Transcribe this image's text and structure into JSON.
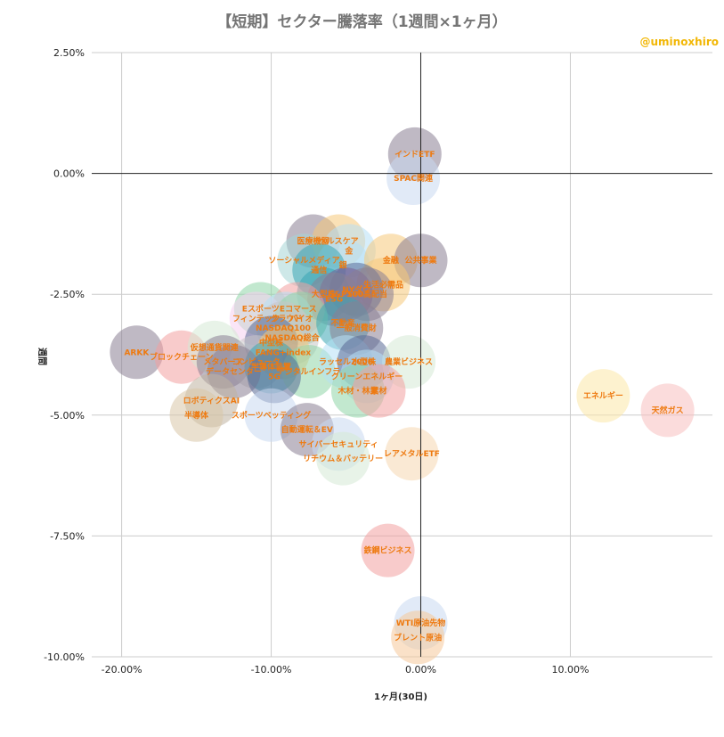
{
  "chart_data": {
    "type": "scatter",
    "title": "【短期】セクター騰落率（1週間×1ヶ月）",
    "watermark": "@uminoxhiro",
    "xlabel": "1ヶ月(30日)",
    "ylabel": "週間",
    "xlim": [
      -22,
      19.5
    ],
    "ylim": [
      -10,
      2.5
    ],
    "x_ticks": [
      "-20.00%",
      "-10.00%",
      "0.00%",
      "10.00%"
    ],
    "x_tick_values": [
      -20,
      -10,
      0,
      10
    ],
    "y_ticks": [
      "2.50%",
      "0.00%",
      "-2.50%",
      "-5.00%",
      "-7.50%",
      "-10.00%"
    ],
    "y_tick_values": [
      2.5,
      0,
      -2.5,
      -5,
      -7.5,
      -10
    ],
    "grid": true,
    "label_color": "#ee7a10",
    "watermark_color": "#f2b705",
    "points": [
      {
        "label": "インドETF",
        "x": -0.4,
        "y": 0.4,
        "color": "#8a8094"
      },
      {
        "label": "SPAC関連",
        "x": -0.5,
        "y": -0.1,
        "color": "#c9d8f0"
      },
      {
        "label": "医療機器",
        "x": -7.2,
        "y": -1.4,
        "color": "#8a8094"
      },
      {
        "label": "ヘルスケア",
        "x": -5.5,
        "y": -1.4,
        "color": "#f5c97a"
      },
      {
        "label": "金",
        "x": -4.8,
        "y": -1.6,
        "color": "#b7e0f5"
      },
      {
        "label": "ソーシャルメディア",
        "x": -7.8,
        "y": -1.8,
        "color": "#a6d6d6"
      },
      {
        "label": "銀",
        "x": -5.2,
        "y": -1.9,
        "color": "#b7e0f5"
      },
      {
        "label": "金融",
        "x": -2.0,
        "y": -1.8,
        "color": "#f5c97a"
      },
      {
        "label": "公共事業",
        "x": 0.0,
        "y": -1.8,
        "color": "#8a8094"
      },
      {
        "label": "通信",
        "x": -6.8,
        "y": -2.0,
        "color": "#3aa6b5"
      },
      {
        "label": "生活必需品",
        "x": -2.5,
        "y": -2.3,
        "color": "#f5c97a"
      },
      {
        "label": "NYダウ",
        "x": -4.3,
        "y": -2.4,
        "color": "#5a6a96"
      },
      {
        "label": "大型株",
        "x": -6.5,
        "y": -2.5,
        "color": "#3aa6b5"
      },
      {
        "label": "S&P500",
        "x": -5.0,
        "y": -2.5,
        "color": "#7a5f96"
      },
      {
        "label": "100高配当",
        "x": -3.6,
        "y": -2.5,
        "color": "#8a8094"
      },
      {
        "label": "ESG",
        "x": -5.8,
        "y": -2.6,
        "color": "#8a8094"
      },
      {
        "label": "Eスポーツ",
        "x": -10.7,
        "y": -2.8,
        "color": "#8fd6a8"
      },
      {
        "label": "Eコマース",
        "x": -8.2,
        "y": -2.8,
        "color": "#f2a0a0"
      },
      {
        "label": "フィンテック",
        "x": -11.0,
        "y": -3.0,
        "color": "#f5d0f0"
      },
      {
        "label": "クラウド",
        "x": -9.0,
        "y": -3.0,
        "color": "#b7e0f5"
      },
      {
        "label": "バイオ",
        "x": -8.0,
        "y": -3.0,
        "color": "#8fd6a8"
      },
      {
        "label": "不動産",
        "x": -5.2,
        "y": -3.1,
        "color": "#3aa6b5"
      },
      {
        "label": "NASDAQ100",
        "x": -9.2,
        "y": -3.2,
        "color": "#c7c7c7"
      },
      {
        "label": "NASDAQ総合",
        "x": -8.6,
        "y": -3.4,
        "color": "#c7c7c7"
      },
      {
        "label": "一般消費財",
        "x": -4.3,
        "y": -3.2,
        "color": "#8a8094"
      },
      {
        "label": "中型株",
        "x": -10.0,
        "y": -3.5,
        "color": "#5a6a96"
      },
      {
        "label": "ARKK",
        "x": -19.0,
        "y": -3.7,
        "color": "#8a8094"
      },
      {
        "label": "ブロックチェーン",
        "x": -16.0,
        "y": -3.8,
        "color": "#f2a0a0"
      },
      {
        "label": "仮想通貨関連",
        "x": -13.8,
        "y": -3.6,
        "color": "#d5ead5"
      },
      {
        "label": "メタバース",
        "x": -13.2,
        "y": -3.9,
        "color": "#8a8094"
      },
      {
        "label": "コンピュータ",
        "x": -11.0,
        "y": -3.9,
        "color": "#c7c7c7"
      },
      {
        "label": "FANG+index",
        "x": -9.2,
        "y": -3.7,
        "color": "#f5c97a"
      },
      {
        "label": "半導体装置",
        "x": -10.0,
        "y": -4.0,
        "color": "#3aa6b5"
      },
      {
        "label": "データセンター",
        "x": -12.5,
        "y": -4.1,
        "color": "#8a8094"
      },
      {
        "label": "デジタルインフラ",
        "x": -7.5,
        "y": -4.1,
        "color": "#8fd6a8"
      },
      {
        "label": "5G",
        "x": -9.8,
        "y": -4.2,
        "color": "#5a6a96"
      },
      {
        "label": "ラッセル2000",
        "x": -5.0,
        "y": -3.9,
        "color": "#b7e0f5"
      },
      {
        "label": "小型株",
        "x": -3.8,
        "y": -3.9,
        "color": "#5a6a96"
      },
      {
        "label": "農業ビジネス",
        "x": -0.8,
        "y": -3.9,
        "color": "#d5ead5"
      },
      {
        "label": "クリーンエネルギー",
        "x": -3.6,
        "y": -4.2,
        "color": "#b7e0f5"
      },
      {
        "label": "木材・林業",
        "x": -4.2,
        "y": -4.5,
        "color": "#8fd6a8"
      },
      {
        "label": "素材",
        "x": -2.8,
        "y": -4.5,
        "color": "#f2a0a0"
      },
      {
        "label": "ロボティクスAI",
        "x": -14.0,
        "y": -4.7,
        "color": "#bfb3a0"
      },
      {
        "label": "半導体",
        "x": -15.0,
        "y": -5.0,
        "color": "#d9c7a8"
      },
      {
        "label": "スポーツベッティング",
        "x": -10.0,
        "y": -5.0,
        "color": "#c9d8f0"
      },
      {
        "label": "自動運転＆EV",
        "x": -7.6,
        "y": -5.3,
        "color": "#8a8094"
      },
      {
        "label": "エネルギー",
        "x": 12.2,
        "y": -4.6,
        "color": "#fbe7a8"
      },
      {
        "label": "天然ガス",
        "x": 16.5,
        "y": -4.9,
        "color": "#f7c0c0"
      },
      {
        "label": "サイバーセキュリティ",
        "x": -5.5,
        "y": -5.6,
        "color": "#c9d8f0"
      },
      {
        "label": "リチウム＆バッテリー",
        "x": -5.2,
        "y": -5.9,
        "color": "#d5ead5"
      },
      {
        "label": "レアメタルETF",
        "x": -0.6,
        "y": -5.8,
        "color": "#f5d7b0"
      },
      {
        "label": "鉄鋼ビジネス",
        "x": -2.2,
        "y": -7.8,
        "color": "#f2a0a0"
      },
      {
        "label": "WTI原油先物",
        "x": 0.0,
        "y": -9.3,
        "color": "#c9d8f0"
      },
      {
        "label": "ブレント原油",
        "x": -0.2,
        "y": -9.6,
        "color": "#f5c99a"
      }
    ]
  }
}
